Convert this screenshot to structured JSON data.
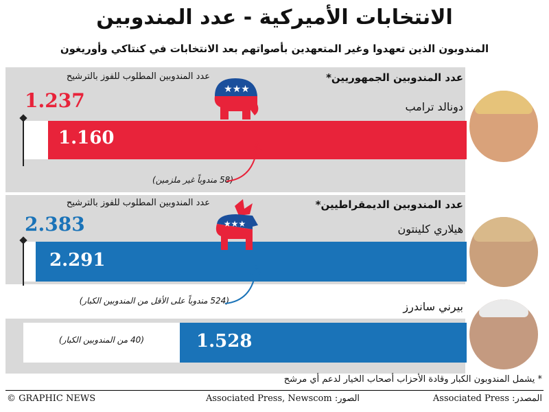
{
  "title": "الانتخابات الأميركية - عدد المندوبين",
  "subtitle": "المندوبون الذين تعهدوا وغير المتعهدين بأصواتهم بعد الانتخابات في كنتاكي وأوريغون",
  "republican": {
    "header": "عدد المندوبين الجمهوريين*",
    "threshold_label": "عدد المندوبين المطلوب للفوز بالترشيح",
    "threshold_value": "1.237",
    "candidate": "دونالد ترامب",
    "bar_value": "1.160",
    "note": "(58 مندوباً غير ملزمين)"
  },
  "democrat": {
    "header": "عدد المندوبين الديمقراطيين*",
    "threshold_label": "عدد المندوبين المطلوب للفوز بالترشيح",
    "threshold_value": "2.383",
    "candidates": [
      {
        "name": "هيلاري كلينتون",
        "bar_value": "2.291",
        "note": "(524 مندوباً على الأقل من المندوبين الكبار)"
      },
      {
        "name": "بيرني ساندرز",
        "bar_value": "1.528",
        "note": "(40 من المندوبين الكبار)"
      }
    ]
  },
  "footnote": "* يشمل المندوبون الكبار وقادة الأحزاب أصحاب الخيار لدعم أي مرشح",
  "footer": {
    "credit": "© GRAPHIC NEWS",
    "photos": "Associated Press, Newscom :الصور",
    "source": "Associated Press :المصدر"
  },
  "colors": {
    "republican": "#e8233a",
    "democrat": "#1a73b8",
    "band": "#d9d9d9"
  },
  "chart_data": {
    "type": "bar",
    "categories": [
      "دونالد ترامب",
      "هيلاري كلينتون",
      "بيرني ساندرز"
    ],
    "values": [
      1160,
      2291,
      1528
    ],
    "thresholds": {
      "republican": 1237,
      "democrat": 2383
    }
  }
}
